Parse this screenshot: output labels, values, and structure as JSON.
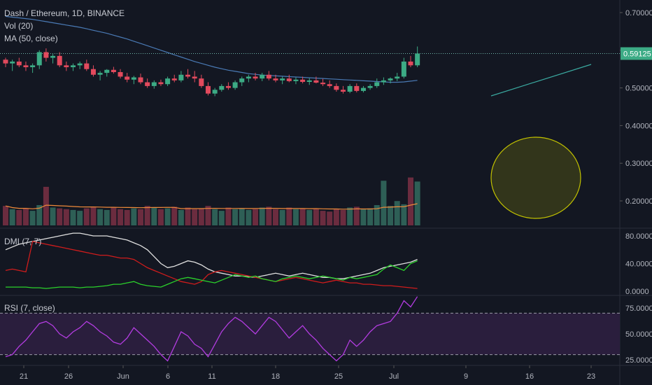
{
  "legend": {
    "symbol": "Dash / Ethereum, 1D, BINANCE",
    "vol": "Vol (20)",
    "ma": "MA (50, close)"
  },
  "dmi_label": "DMI (7, 7)",
  "rsi_label": "RSI (7, close)",
  "last_price": "0.59125",
  "colors": {
    "up": "#3cab85",
    "down": "#e24a5d",
    "ma": "#4a7ab5",
    "volma": "#ef8a3a",
    "dmi_adx": "#e0e0e0",
    "dmi_plus": "#2bd12b",
    "dmi_minus": "#d01c1c",
    "rsi": "#b23ce0",
    "rsi_band": "#2a1e3d",
    "highlight": "#c2c200"
  },
  "chart_data": {
    "type": "candlestick",
    "x_ticks": [
      "21",
      "26",
      "Jun",
      "6",
      "11",
      "18",
      "25",
      "Jul",
      "9",
      "16",
      "23"
    ],
    "price_axis": [
      "0.70000",
      "0.60000",
      "0.50000",
      "0.40000",
      "0.30000",
      "0.20000"
    ],
    "dmi_axis": [
      "80.0000",
      "40.0000",
      "0.0000"
    ],
    "rsi_axis": [
      "75.0000",
      "50.0000",
      "25.0000"
    ],
    "candles": [
      [
        0.575,
        0.58,
        0.555,
        0.565
      ],
      [
        0.565,
        0.575,
        0.545,
        0.57
      ],
      [
        0.57,
        0.58,
        0.555,
        0.56
      ],
      [
        0.56,
        0.57,
        0.545,
        0.555
      ],
      [
        0.555,
        0.565,
        0.54,
        0.56
      ],
      [
        0.56,
        0.6,
        0.55,
        0.595
      ],
      [
        0.595,
        0.605,
        0.57,
        0.58
      ],
      [
        0.58,
        0.59,
        0.565,
        0.585
      ],
      [
        0.585,
        0.595,
        0.555,
        0.56
      ],
      [
        0.56,
        0.57,
        0.545,
        0.555
      ],
      [
        0.555,
        0.565,
        0.545,
        0.56
      ],
      [
        0.56,
        0.57,
        0.55,
        0.565
      ],
      [
        0.565,
        0.575,
        0.545,
        0.55
      ],
      [
        0.55,
        0.56,
        0.53,
        0.535
      ],
      [
        0.535,
        0.545,
        0.52,
        0.54
      ],
      [
        0.54,
        0.55,
        0.53,
        0.548
      ],
      [
        0.548,
        0.556,
        0.538,
        0.542
      ],
      [
        0.542,
        0.55,
        0.525,
        0.53
      ],
      [
        0.53,
        0.54,
        0.515,
        0.522
      ],
      [
        0.522,
        0.532,
        0.51,
        0.528
      ],
      [
        0.528,
        0.538,
        0.51,
        0.515
      ],
      [
        0.515,
        0.525,
        0.5,
        0.505
      ],
      [
        0.505,
        0.52,
        0.498,
        0.515
      ],
      [
        0.515,
        0.522,
        0.505,
        0.51
      ],
      [
        0.51,
        0.53,
        0.505,
        0.525
      ],
      [
        0.525,
        0.535,
        0.515,
        0.52
      ],
      [
        0.52,
        0.545,
        0.515,
        0.535
      ],
      [
        0.535,
        0.55,
        0.525,
        0.53
      ],
      [
        0.53,
        0.545,
        0.515,
        0.525
      ],
      [
        0.525,
        0.535,
        0.5,
        0.505
      ],
      [
        0.505,
        0.515,
        0.48,
        0.485
      ],
      [
        0.485,
        0.5,
        0.478,
        0.495
      ],
      [
        0.495,
        0.51,
        0.49,
        0.505
      ],
      [
        0.505,
        0.515,
        0.495,
        0.5
      ],
      [
        0.5,
        0.52,
        0.495,
        0.515
      ],
      [
        0.515,
        0.53,
        0.505,
        0.525
      ],
      [
        0.525,
        0.535,
        0.515,
        0.53
      ],
      [
        0.53,
        0.54,
        0.52,
        0.525
      ],
      [
        0.525,
        0.54,
        0.518,
        0.535
      ],
      [
        0.535,
        0.545,
        0.52,
        0.525
      ],
      [
        0.525,
        0.535,
        0.515,
        0.52
      ],
      [
        0.52,
        0.53,
        0.51,
        0.525
      ],
      [
        0.525,
        0.535,
        0.515,
        0.518
      ],
      [
        0.518,
        0.528,
        0.51,
        0.522
      ],
      [
        0.522,
        0.53,
        0.512,
        0.516
      ],
      [
        0.516,
        0.526,
        0.508,
        0.52
      ],
      [
        0.52,
        0.53,
        0.512,
        0.514
      ],
      [
        0.514,
        0.524,
        0.505,
        0.51
      ],
      [
        0.51,
        0.52,
        0.5,
        0.505
      ],
      [
        0.505,
        0.512,
        0.49,
        0.495
      ],
      [
        0.495,
        0.505,
        0.485,
        0.49
      ],
      [
        0.49,
        0.51,
        0.486,
        0.505
      ],
      [
        0.505,
        0.512,
        0.488,
        0.492
      ],
      [
        0.492,
        0.505,
        0.488,
        0.5
      ],
      [
        0.5,
        0.51,
        0.495,
        0.505
      ],
      [
        0.505,
        0.525,
        0.5,
        0.515
      ],
      [
        0.515,
        0.528,
        0.508,
        0.52
      ],
      [
        0.52,
        0.528,
        0.512,
        0.525
      ],
      [
        0.525,
        0.54,
        0.518,
        0.53
      ],
      [
        0.53,
        0.58,
        0.525,
        0.57
      ],
      [
        0.57,
        0.585,
        0.555,
        0.56
      ],
      [
        0.56,
        0.61,
        0.555,
        0.591
      ]
    ],
    "volume": [
      48,
      40,
      38,
      42,
      36,
      50,
      95,
      44,
      42,
      40,
      38,
      36,
      42,
      46,
      40,
      38,
      44,
      40,
      38,
      42,
      40,
      48,
      44,
      40,
      42,
      46,
      38,
      44,
      40,
      42,
      48,
      40,
      36,
      44,
      40,
      42,
      38,
      40,
      44,
      46,
      40,
      38,
      44,
      40,
      42,
      38,
      40,
      36,
      34,
      40,
      38,
      44,
      46,
      40,
      42,
      50,
      110,
      48,
      60,
      52,
      118,
      108
    ],
    "ma": [
      0.69,
      0.688,
      0.686,
      0.684,
      0.682,
      0.679,
      0.676,
      0.673,
      0.67,
      0.667,
      0.664,
      0.661,
      0.657,
      0.653,
      0.649,
      0.645,
      0.64,
      0.635,
      0.63,
      0.624,
      0.618,
      0.612,
      0.606,
      0.6,
      0.594,
      0.588,
      0.582,
      0.576,
      0.57,
      0.565,
      0.56,
      0.555,
      0.551,
      0.547,
      0.544,
      0.541,
      0.538,
      0.536,
      0.534,
      0.533,
      0.532,
      0.531,
      0.53,
      0.529,
      0.528,
      0.527,
      0.526,
      0.525,
      0.524,
      0.523,
      0.522,
      0.521,
      0.52,
      0.519,
      0.518,
      0.517,
      0.516,
      0.515,
      0.515,
      0.516,
      0.518,
      0.52
    ],
    "dmi_adx": [
      60,
      64,
      68,
      70,
      72,
      74,
      76,
      78,
      80,
      82,
      84,
      84,
      82,
      80,
      80,
      80,
      78,
      76,
      74,
      70,
      66,
      60,
      50,
      40,
      34,
      36,
      40,
      44,
      42,
      38,
      32,
      28,
      26,
      24,
      22,
      22,
      21,
      20,
      22,
      24,
      26,
      24,
      22,
      24,
      26,
      24,
      22,
      20,
      20,
      18,
      18,
      20,
      22,
      24,
      26,
      30,
      34,
      36,
      38,
      40,
      42,
      46
    ],
    "dmi_plus": [
      6,
      6,
      6,
      6,
      5,
      5,
      4,
      5,
      6,
      6,
      6,
      5,
      6,
      6,
      7,
      8,
      10,
      10,
      12,
      14,
      10,
      8,
      7,
      6,
      10,
      14,
      18,
      20,
      18,
      16,
      14,
      12,
      16,
      20,
      24,
      22,
      20,
      22,
      18,
      16,
      14,
      18,
      20,
      22,
      20,
      18,
      20,
      22,
      20,
      18,
      16,
      20,
      18,
      20,
      22,
      24,
      32,
      38,
      34,
      30,
      40,
      44
    ],
    "dmi_minus": [
      30,
      32,
      30,
      28,
      72,
      70,
      68,
      66,
      64,
      62,
      60,
      58,
      56,
      54,
      52,
      52,
      50,
      48,
      48,
      46,
      40,
      34,
      30,
      26,
      22,
      18,
      14,
      12,
      10,
      14,
      24,
      28,
      30,
      28,
      26,
      24,
      22,
      20,
      18,
      16,
      14,
      16,
      18,
      20,
      18,
      16,
      14,
      12,
      14,
      16,
      14,
      12,
      12,
      10,
      10,
      9,
      8,
      8,
      7,
      6,
      5,
      4
    ],
    "rsi": [
      28,
      30,
      38,
      44,
      52,
      60,
      62,
      58,
      50,
      46,
      52,
      56,
      62,
      58,
      52,
      48,
      42,
      40,
      46,
      56,
      50,
      44,
      38,
      30,
      24,
      38,
      52,
      48,
      40,
      36,
      28,
      40,
      52,
      60,
      66,
      62,
      56,
      50,
      58,
      66,
      62,
      54,
      46,
      52,
      58,
      50,
      44,
      36,
      30,
      24,
      30,
      44,
      38,
      44,
      52,
      58,
      60,
      62,
      70,
      82,
      76,
      86
    ]
  }
}
